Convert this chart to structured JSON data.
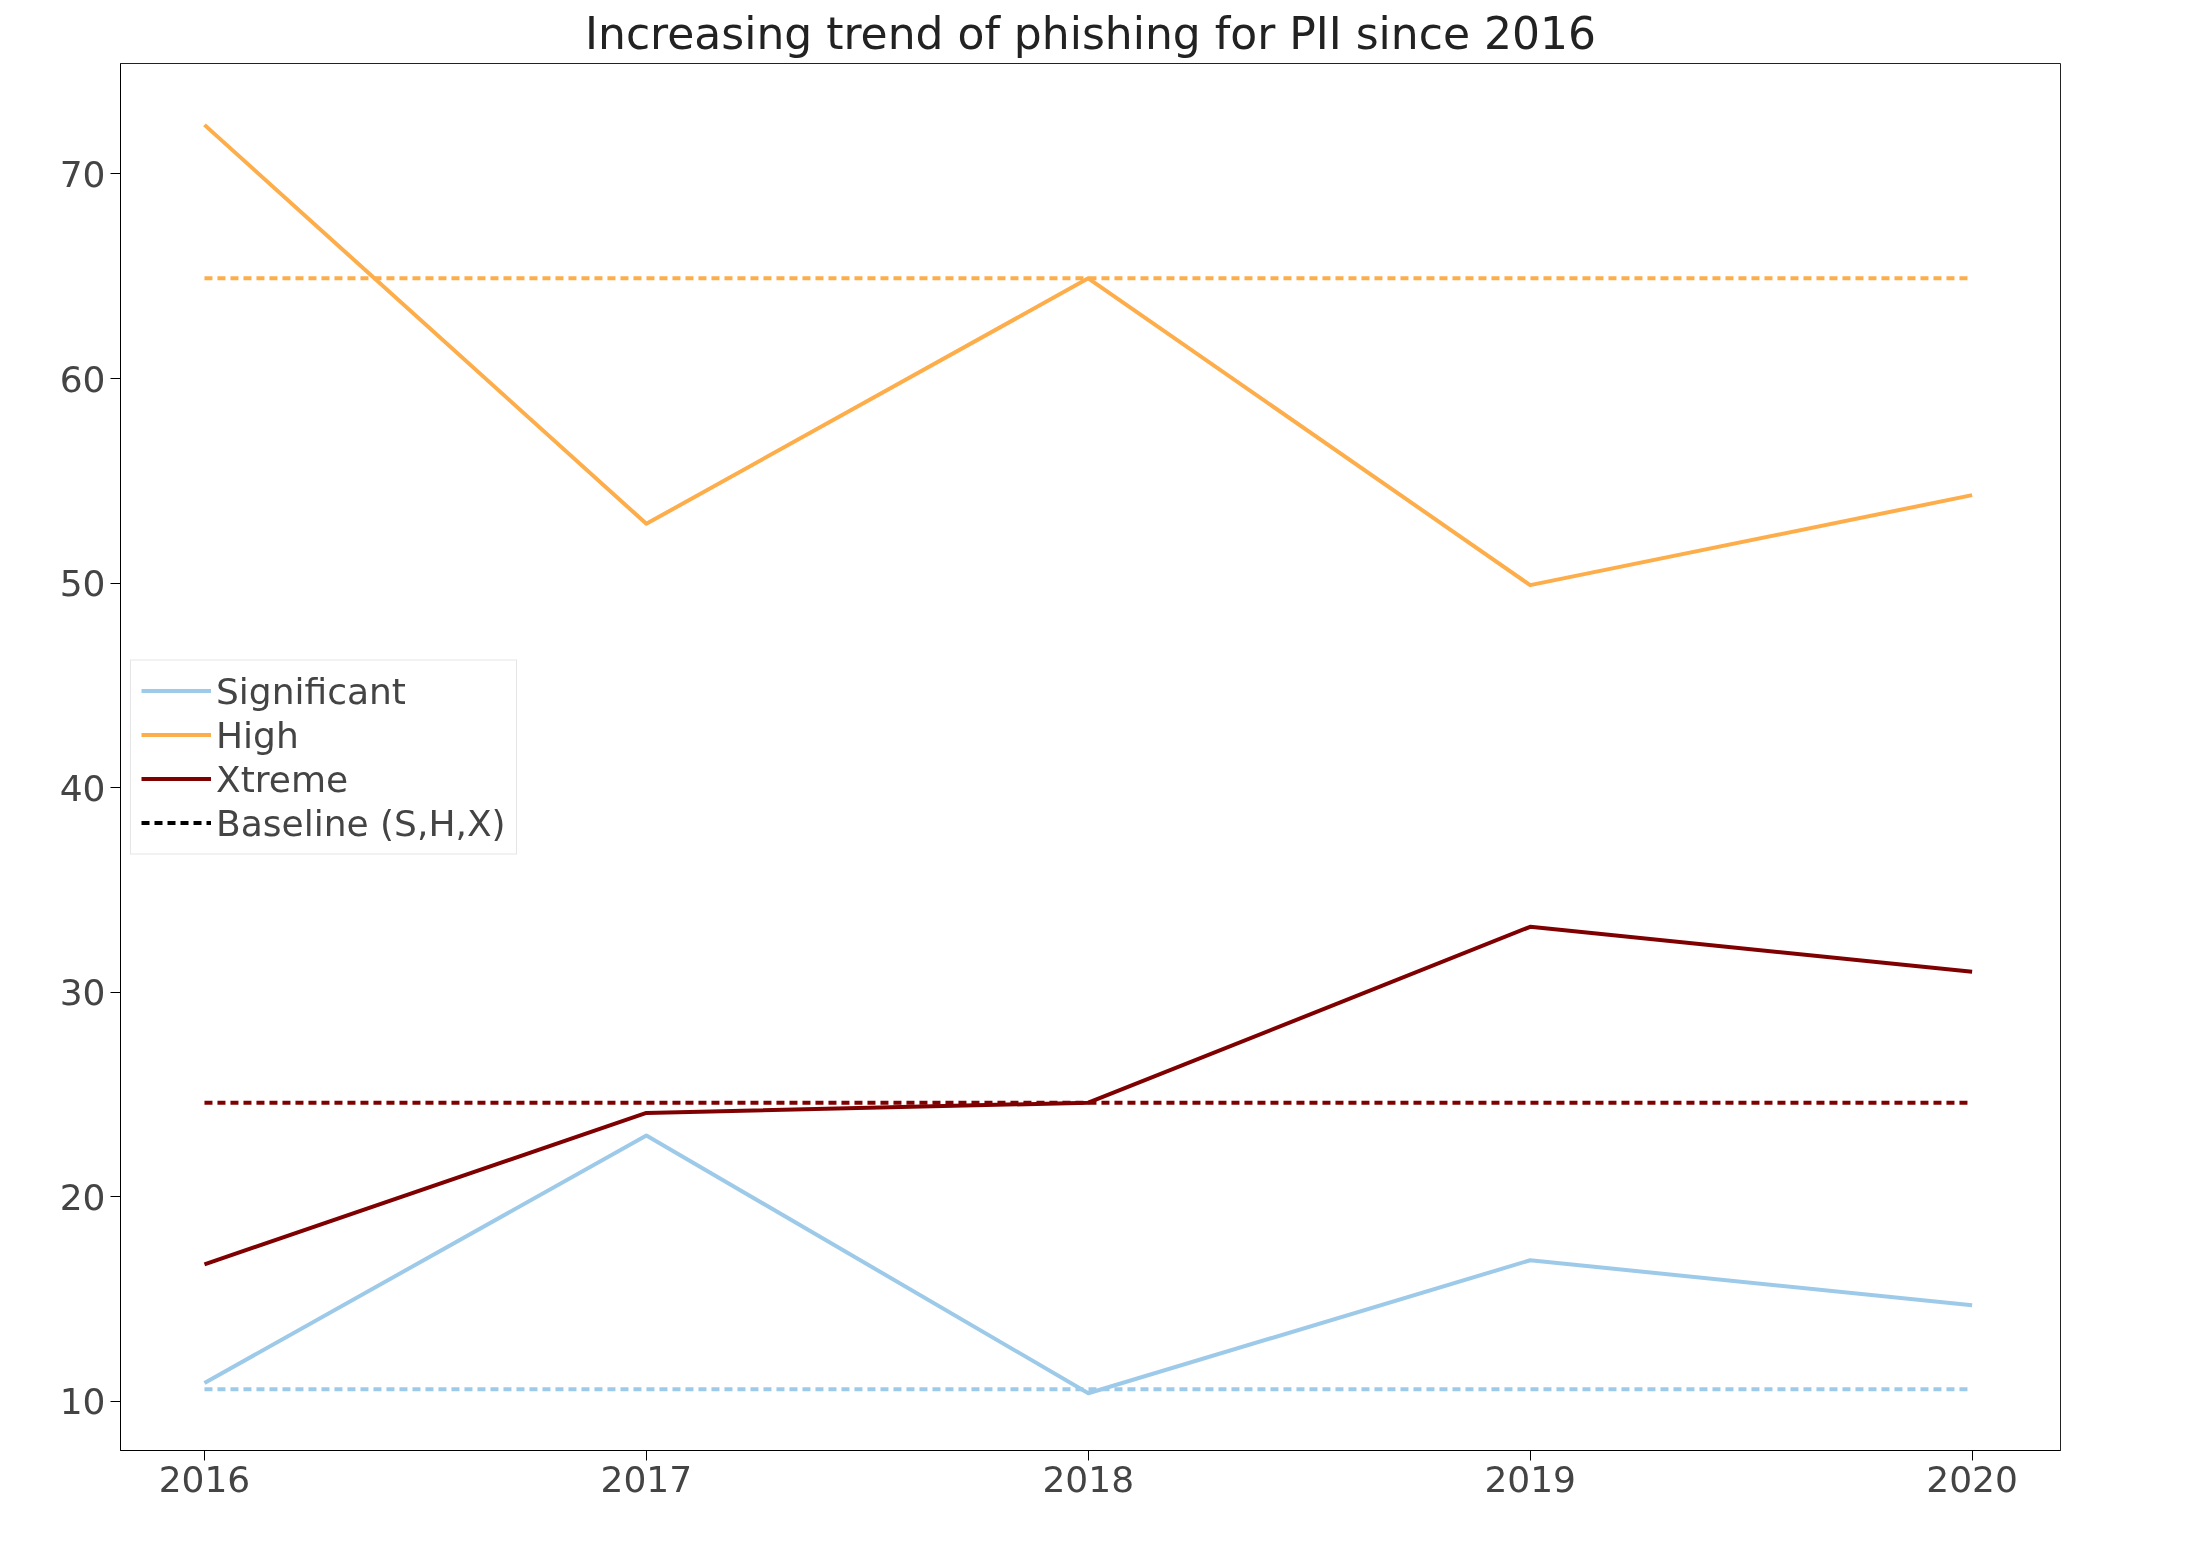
{
  "chart_data": {
    "type": "line",
    "title": "Increasing trend of phishing for PII since 2016",
    "x": [
      2016,
      2017,
      2018,
      2019,
      2020
    ],
    "series": [
      {
        "name": "Significant",
        "color": "#9ecae9",
        "values": [
          10.9,
          23.0,
          10.4,
          16.9,
          14.7
        ]
      },
      {
        "name": "High",
        "color": "#fdae4b",
        "values": [
          72.4,
          52.9,
          64.9,
          49.9,
          54.3
        ]
      },
      {
        "name": "Xtreme",
        "color": "#7f0000",
        "values": [
          16.7,
          24.1,
          24.6,
          33.2,
          31.0
        ]
      },
      {
        "name": "Baseline (S,H,X)",
        "color": "#000000",
        "line_style": "dashed",
        "values": [
          null,
          null,
          null,
          null,
          null
        ]
      },
      {
        "color": "#9ecae9",
        "line_style": "dashed",
        "values": [
          10.6,
          10.6,
          10.6,
          10.6,
          10.6
        ]
      },
      {
        "color": "#fdae4b",
        "line_style": "dashed",
        "values": [
          64.9,
          64.9,
          64.9,
          64.9,
          64.9
        ]
      },
      {
        "color": "#7f0000",
        "line_style": "dashed",
        "values": [
          24.6,
          24.6,
          24.6,
          24.6,
          24.6
        ]
      }
    ],
    "xlim": [
      2015.81,
      2020.2
    ],
    "ylim": [
      7.6,
      75.4
    ],
    "xticks": [
      2016,
      2017,
      2018,
      2019,
      2020
    ],
    "yticks": [
      10,
      20,
      30,
      40,
      50,
      60,
      70
    ],
    "legend": "left",
    "grid": false,
    "line_style": "solid",
    "marker": "none"
  }
}
